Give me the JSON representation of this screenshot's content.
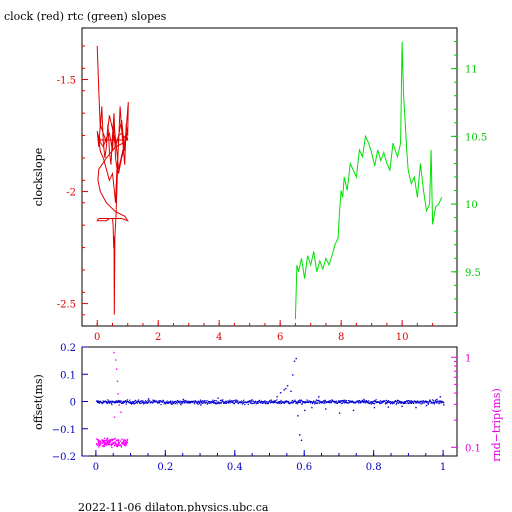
{
  "title": "clock (red) rtc (green) slopes",
  "footer": "2022-11-06  dilaton.physics.ubc.ca",
  "colors": {
    "clock": "#e00000",
    "rtc": "#00e000",
    "offset": "#0000d0",
    "roundtrip": "#ff00ff",
    "axis_red": "#e00000",
    "axis_green": "#00c800",
    "axis_blue": "#0000c0",
    "axis_magenta": "#e000e0",
    "frame": "#000000"
  },
  "chart_data": [
    {
      "type": "line",
      "name": "top-panel",
      "title": "clock (red) rtc (green) slopes",
      "xlabel": "",
      "ylabel_left": "clockslope",
      "ylabel_right": "",
      "xlim": [
        -0.5,
        11.8
      ],
      "ylim_left": [
        -2.6,
        -1.27
      ],
      "ylim_right": [
        9.1,
        11.3
      ],
      "x_ticks": [
        "0",
        "2",
        "4",
        "6",
        "8",
        "10"
      ],
      "x_tick_values": [
        0,
        2,
        4,
        6,
        8,
        10
      ],
      "y_left_ticks": [
        "-1.5",
        "-2",
        "-2.5"
      ],
      "y_left_tick_values": [
        -1.5,
        -2.0,
        -2.5
      ],
      "y_right_ticks": [
        "11",
        "10.5",
        "10",
        "9.5"
      ],
      "y_right_tick_values": [
        11,
        10.5,
        10,
        9.5
      ],
      "series": [
        {
          "name": "clock (red)",
          "axis": "left",
          "x": [
            0.0,
            0.05,
            0.1,
            0.15,
            0.2,
            0.25,
            0.3,
            0.35,
            0.4,
            0.45,
            0.5,
            0.55,
            0.6,
            0.65,
            0.7,
            0.75,
            0.8,
            0.85,
            0.9,
            0.95,
            1.0,
            1.02,
            0.95,
            0.9,
            0.8,
            0.7,
            0.6,
            0.5,
            0.4,
            0.3,
            0.2,
            0.1,
            0.05,
            0.0,
            0.05,
            0.1,
            0.2,
            0.3,
            0.4,
            0.5,
            0.55,
            0.6,
            0.65,
            0.7,
            0.8,
            0.9,
            1.0,
            0.9,
            0.8,
            0.7,
            0.6,
            0.55,
            0.5,
            0.45,
            0.4,
            0.3,
            0.2,
            0.1,
            0.05,
            0.1,
            0.2,
            0.4,
            0.6,
            0.8,
            1.0,
            0.95,
            0.9,
            0.8,
            0.7,
            0.62,
            0.58,
            0.56,
            0.55,
            0.54,
            0.52,
            0.5,
            0.4,
            0.3,
            0.2,
            0.1,
            0.0,
            0.05,
            0.2,
            0.5,
            0.8,
            1.0,
            0.9,
            0.6,
            0.3,
            0.1,
            0.02,
            0.05,
            0.3,
            0.6,
            0.9,
            1.0
          ],
          "y": [
            -1.35,
            -1.55,
            -1.72,
            -1.62,
            -1.78,
            -1.85,
            -1.8,
            -1.7,
            -1.82,
            -1.88,
            -1.75,
            -1.65,
            -1.85,
            -1.9,
            -1.78,
            -1.62,
            -1.72,
            -1.8,
            -1.88,
            -1.7,
            -1.75,
            -1.6,
            -1.72,
            -1.82,
            -1.68,
            -1.75,
            -1.8,
            -1.72,
            -1.66,
            -1.78,
            -1.74,
            -1.7,
            -1.8,
            -1.73,
            -1.76,
            -1.82,
            -1.85,
            -1.9,
            -1.95,
            -1.92,
            -1.98,
            -2.05,
            -1.88,
            -1.92,
            -1.85,
            -1.8,
            -1.72,
            -1.78,
            -1.84,
            -1.9,
            -1.76,
            -1.7,
            -1.82,
            -1.78,
            -1.74,
            -1.76,
            -1.8,
            -1.78,
            -1.75,
            -1.77,
            -1.77,
            -1.77,
            -1.77,
            -1.77,
            -1.77,
            -1.74,
            -1.76,
            -1.74,
            -1.75,
            -2.1,
            -2.2,
            -2.55,
            -2.2,
            -2.25,
            -2.15,
            -2.12,
            -2.12,
            -2.13,
            -2.13,
            -2.13,
            -2.13,
            -2.12,
            -2.12,
            -2.12,
            -2.12,
            -2.13,
            -2.11,
            -2.09,
            -2.05,
            -2.0,
            -1.95,
            -1.9,
            -1.85,
            -1.8,
            -1.78,
            -1.76
          ]
        },
        {
          "name": "rtc (green)",
          "axis": "right",
          "x": [
            6.5,
            6.55,
            6.6,
            6.7,
            6.8,
            6.9,
            7.0,
            7.1,
            7.2,
            7.3,
            7.4,
            7.5,
            7.6,
            7.7,
            7.8,
            7.9,
            7.95,
            8.0,
            8.05,
            8.1,
            8.2,
            8.3,
            8.4,
            8.5,
            8.6,
            8.7,
            8.8,
            8.9,
            9.0,
            9.1,
            9.2,
            9.3,
            9.4,
            9.5,
            9.6,
            9.7,
            9.8,
            9.85,
            9.9,
            9.95,
            10.0,
            10.05,
            10.1,
            10.15,
            10.2,
            10.3,
            10.4,
            10.5,
            10.6,
            10.7,
            10.8,
            10.9,
            10.95,
            11.0,
            11.1,
            11.2,
            11.3
          ],
          "y": [
            9.15,
            9.55,
            9.5,
            9.6,
            9.45,
            9.62,
            9.55,
            9.65,
            9.5,
            9.58,
            9.52,
            9.6,
            9.55,
            9.62,
            9.7,
            9.75,
            9.95,
            10.1,
            10.05,
            10.2,
            10.1,
            10.3,
            10.25,
            10.2,
            10.4,
            10.35,
            10.5,
            10.45,
            10.38,
            10.28,
            10.4,
            10.32,
            10.38,
            10.3,
            10.25,
            10.45,
            10.38,
            10.35,
            10.4,
            10.45,
            11.2,
            10.8,
            10.6,
            10.4,
            10.25,
            10.15,
            10.2,
            10.05,
            10.3,
            10.1,
            9.95,
            10.0,
            10.4,
            9.85,
            9.98,
            10.0,
            10.05
          ]
        }
      ]
    },
    {
      "type": "scatter",
      "name": "bottom-panel",
      "xlabel": "",
      "ylabel_left": "offset(ms)",
      "ylabel_right": "rnd−trip(ms)",
      "xlim": [
        -0.04,
        1.04
      ],
      "ylim_left": [
        -0.2,
        0.2
      ],
      "ylim_right_log": [
        0.08,
        1.3
      ],
      "x_ticks": [
        "0",
        "0.2",
        "0.4",
        "0.6",
        "0.8",
        "1"
      ],
      "x_tick_values": [
        0,
        0.2,
        0.4,
        0.6,
        0.8,
        1.0
      ],
      "y_left_ticks": [
        "0.2",
        "0.1",
        "0",
        "−0.1",
        "−0.2"
      ],
      "y_left_tick_values": [
        0.2,
        0.1,
        0,
        -0.1,
        -0.2
      ],
      "y_right_ticks": [
        "1",
        "0.1"
      ],
      "y_right_tick_values": [
        1,
        0.1
      ],
      "series": [
        {
          "name": "offset",
          "axis": "left",
          "baseline": 0.0,
          "spread": 0.006,
          "x_range": [
            0.0,
            1.0
          ],
          "count": 900,
          "outliers_x": [
            0.52,
            0.53,
            0.54,
            0.545,
            0.55,
            0.56,
            0.565,
            0.57,
            0.575,
            0.58,
            0.585,
            0.59,
            0.6,
            0.62,
            0.64,
            0.66,
            0.7,
            0.74,
            0.77,
            0.8,
            0.84,
            0.88,
            0.92,
            0.95,
            0.98,
            0.99,
            1.0,
            0.35,
            0.3,
            0.25,
            0.15
          ],
          "outliers_y": [
            0.02,
            0.035,
            0.045,
            0.05,
            0.06,
            0.04,
            0.1,
            0.15,
            0.16,
            -0.05,
            -0.12,
            -0.14,
            -0.03,
            -0.02,
            0.02,
            -0.025,
            -0.04,
            -0.03,
            0.01,
            -0.02,
            -0.018,
            -0.015,
            -0.02,
            -0.012,
            0.01,
            0.02,
            -0.01,
            0.015,
            -0.01,
            0.01,
            0.012
          ]
        },
        {
          "name": "rnd-trip",
          "axis": "right-log",
          "baseline": 0.115,
          "spread": 0.01,
          "x_range": [
            0.0,
            0.09
          ],
          "count": 140,
          "outliers_x": [
            0.05,
            0.055,
            0.058,
            0.06,
            0.062,
            0.065,
            0.07,
            0.052
          ],
          "outliers_y": [
            1.15,
            0.95,
            0.75,
            0.55,
            0.4,
            0.3,
            0.25,
            0.22
          ]
        }
      ]
    }
  ]
}
